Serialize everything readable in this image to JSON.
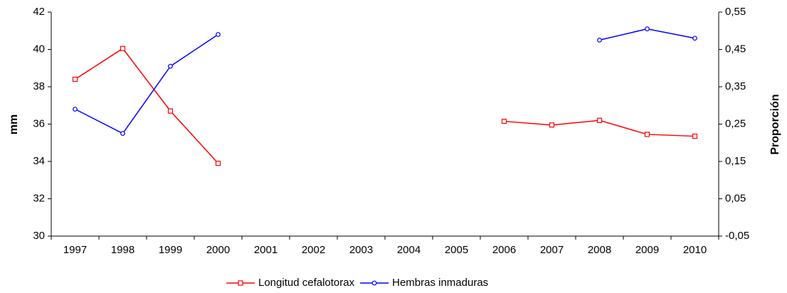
{
  "chart_data": {
    "type": "line",
    "categories": [
      "1997",
      "1998",
      "1999",
      "2000",
      "2001",
      "2002",
      "2003",
      "2004",
      "2005",
      "2006",
      "2007",
      "2008",
      "2009",
      "2010"
    ],
    "ylabel": "mm",
    "y2label": "Proporción",
    "ylim": [
      30,
      42
    ],
    "yticks": [
      30,
      32,
      34,
      36,
      38,
      40,
      42
    ],
    "y2lim": [
      -0.05,
      0.55
    ],
    "y2ticks": [
      {
        "value": -0.05,
        "label": "-0,05"
      },
      {
        "value": 0.05,
        "label": "0,05"
      },
      {
        "value": 0.15,
        "label": "0,15"
      },
      {
        "value": 0.25,
        "label": "0,25"
      },
      {
        "value": 0.35,
        "label": "0,35"
      },
      {
        "value": 0.45,
        "label": "0,45"
      },
      {
        "value": 0.55,
        "label": "0,55"
      }
    ],
    "series": [
      {
        "name": "Longitud cefalotorax",
        "color": "#ff0000",
        "marker": "square",
        "values": [
          38.4,
          40.05,
          36.7,
          33.9,
          null,
          null,
          null,
          null,
          null,
          36.15,
          35.95,
          36.2,
          35.45,
          35.35
        ]
      },
      {
        "name": "Hembras inmaduras",
        "color": "#0000ff",
        "marker": "circle",
        "axis": "y2",
        "values": [
          0.29,
          0.225,
          0.405,
          0.49,
          null,
          null,
          null,
          null,
          null,
          null,
          null,
          0.475,
          0.505,
          0.48
        ]
      }
    ],
    "legend": "bottom"
  }
}
